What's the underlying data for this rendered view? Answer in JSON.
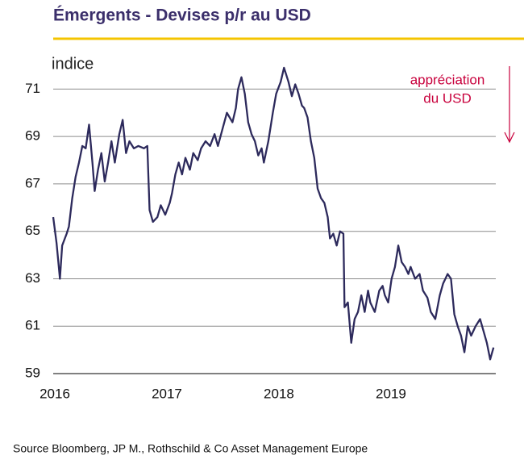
{
  "chart_data": {
    "type": "line",
    "title": "Émergents - Devises p/r au USD",
    "y_label": "indice",
    "annotation": [
      "appréciation",
      "du USD"
    ],
    "source": "Source Bloomberg, JP M., Rothschild & Co Asset Management Europe",
    "x": [
      2016,
      2016.03,
      2016.06,
      2016.08,
      2016.12,
      2016.14,
      2016.17,
      2016.2,
      2016.23,
      2016.26,
      2016.29,
      2016.32,
      2016.35,
      2016.37,
      2016.4,
      2016.43,
      2016.46,
      2016.49,
      2016.52,
      2016.55,
      2016.59,
      2016.62,
      2016.65,
      2016.68,
      2016.72,
      2016.76,
      2016.81,
      2016.84,
      2016.86,
      2016.89,
      2016.93,
      2016.96,
      2017,
      2017.04,
      2017.06,
      2017.09,
      2017.12,
      2017.15,
      2017.18,
      2017.22,
      2017.25,
      2017.29,
      2017.32,
      2017.36,
      2017.4,
      2017.44,
      2017.47,
      2017.51,
      2017.55,
      2017.6,
      2017.63,
      2017.65,
      2017.68,
      2017.71,
      2017.74,
      2017.77,
      2017.8,
      2017.83,
      2017.86,
      2017.88,
      2017.92,
      2017.96,
      2017.99,
      2018.03,
      2018.06,
      2018.1,
      2018.13,
      2018.16,
      2018.19,
      2018.22,
      2018.24,
      2018.27,
      2018.3,
      2018.33,
      2018.36,
      2018.39,
      2018.42,
      2018.45,
      2018.47,
      2018.5,
      2018.53,
      2018.56,
      2018.59,
      2018.6,
      2018.63,
      2018.66,
      2018.69,
      2018.72,
      2018.75,
      2018.78,
      2018.81,
      2018.83,
      2018.87,
      2018.91,
      2018.94,
      2018.96,
      2018.99,
      2019.02,
      2019.05,
      2019.08,
      2019.11,
      2019.14,
      2019.17,
      2019.19,
      2019.23,
      2019.27,
      2019.3,
      2019.34,
      2019.37,
      2019.41,
      2019.45,
      2019.48,
      2019.52,
      2019.55,
      2019.58,
      2019.61,
      2019.64,
      2019.67,
      2019.7,
      2019.73,
      2019.77,
      2019.81,
      2019.84,
      2019.87,
      2019.9,
      2019.93
    ],
    "series": [
      {
        "color": "#2d2a5c",
        "values": [
          65.6,
          64.5,
          63.0,
          64.4,
          64.9,
          65.2,
          66.4,
          67.3,
          67.9,
          68.6,
          68.5,
          69.5,
          67.9,
          66.7,
          67.6,
          68.3,
          67.1,
          67.9,
          68.8,
          67.9,
          69.1,
          69.7,
          68.3,
          68.8,
          68.5,
          68.6,
          68.5,
          68.6,
          65.9,
          65.4,
          65.6,
          66.1,
          65.7,
          66.2,
          66.6,
          67.4,
          67.9,
          67.4,
          68.1,
          67.6,
          68.3,
          68.0,
          68.5,
          68.8,
          68.6,
          69.1,
          68.6,
          69.3,
          70.0,
          69.6,
          70.2,
          71.0,
          71.5,
          70.8,
          69.6,
          69.1,
          68.8,
          68.2,
          68.5,
          67.9,
          68.8,
          70.0,
          70.8,
          71.3,
          71.9,
          71.3,
          70.7,
          71.2,
          70.8,
          70.3,
          70.2,
          69.8,
          68.8,
          68.1,
          66.8,
          66.4,
          66.2,
          65.6,
          64.7,
          64.9,
          64.4,
          65.0,
          64.9,
          61.8,
          62.0,
          60.3,
          61.3,
          61.6,
          62.3,
          61.6,
          62.5,
          62.0,
          61.6,
          62.5,
          62.7,
          62.3,
          62.0,
          63.0,
          63.5,
          64.4,
          63.7,
          63.5,
          63.2,
          63.5,
          63.0,
          63.2,
          62.5,
          62.2,
          61.6,
          61.3,
          62.3,
          62.8,
          63.2,
          63.0,
          61.5,
          61.0,
          60.6,
          59.9,
          61.0,
          60.6,
          61.0,
          61.3,
          60.8,
          60.3,
          59.6,
          60.1
        ]
      }
    ],
    "xlim": [
      2016,
      2019.95
    ],
    "xticks": [
      2016,
      2017,
      2018,
      2019
    ],
    "ylim": [
      59,
      72
    ],
    "yticks": [
      59,
      61,
      63,
      65,
      67,
      69,
      71
    ],
    "grid": true
  }
}
